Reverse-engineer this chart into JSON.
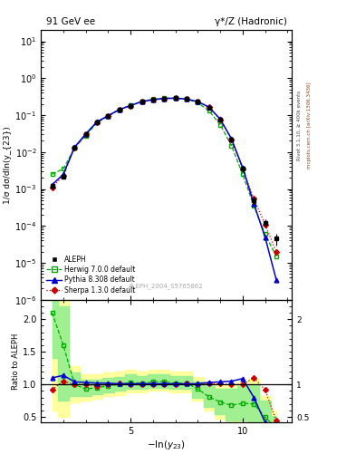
{
  "title_left": "91 GeV ee",
  "title_right": "γ*/Z (Hadronic)",
  "ylabel_main": "1/σ dσ/dln(y_{23})",
  "ylabel_ratio": "Ratio to ALEPH",
  "watermark": "ALEPH_2004_S5765862",
  "right_label1": "Rivet 3.1.10, ≥ 400k events",
  "right_label2": "mcplots.cern.ch [arXiv:1306.3436]",
  "aleph_x": [
    1.5,
    2.0,
    2.5,
    3.0,
    3.5,
    4.0,
    4.5,
    5.0,
    5.5,
    6.0,
    6.5,
    7.0,
    7.5,
    8.0,
    8.5,
    9.0,
    9.5,
    10.0,
    10.5,
    11.0,
    11.5
  ],
  "aleph_y": [
    0.0012,
    0.0022,
    0.013,
    0.03,
    0.065,
    0.095,
    0.14,
    0.18,
    0.23,
    0.26,
    0.28,
    0.285,
    0.27,
    0.23,
    0.16,
    0.075,
    0.022,
    0.0035,
    0.0005,
    0.00012,
    4.5e-05
  ],
  "aleph_yerr": [
    0.0002,
    0.0003,
    0.001,
    0.002,
    0.004,
    0.005,
    0.006,
    0.007,
    0.008,
    0.008,
    0.008,
    0.008,
    0.008,
    0.007,
    0.006,
    0.004,
    0.002,
    0.0005,
    0.0001,
    3e-05,
    1.5e-05
  ],
  "herwig_x": [
    1.5,
    2.0,
    2.5,
    3.0,
    3.5,
    4.0,
    4.5,
    5.0,
    5.5,
    6.0,
    6.5,
    7.0,
    7.5,
    8.0,
    8.5,
    9.0,
    9.5,
    10.0,
    10.5,
    11.0,
    11.5
  ],
  "herwig_y": [
    0.0025,
    0.0035,
    0.013,
    0.028,
    0.062,
    0.093,
    0.14,
    0.185,
    0.235,
    0.27,
    0.29,
    0.29,
    0.275,
    0.215,
    0.13,
    0.055,
    0.015,
    0.0025,
    0.00035,
    6e-05,
    1.5e-05
  ],
  "pythia_x": [
    1.5,
    2.0,
    2.5,
    3.0,
    3.5,
    4.0,
    4.5,
    5.0,
    5.5,
    6.0,
    6.5,
    7.0,
    7.5,
    8.0,
    8.5,
    9.0,
    9.5,
    10.0,
    10.5,
    11.0,
    11.5
  ],
  "pythia_y": [
    0.0013,
    0.0025,
    0.0135,
    0.031,
    0.066,
    0.097,
    0.142,
    0.182,
    0.232,
    0.262,
    0.282,
    0.287,
    0.273,
    0.232,
    0.165,
    0.078,
    0.023,
    0.0038,
    0.0004,
    5e-05,
    3.5e-06
  ],
  "sherpa_x": [
    1.5,
    2.0,
    2.5,
    3.0,
    3.5,
    4.0,
    4.5,
    5.0,
    5.5,
    6.0,
    6.5,
    7.0,
    7.5,
    8.0,
    8.5,
    9.0,
    9.5,
    10.0,
    10.5,
    11.0,
    11.5
  ],
  "sherpa_y": [
    0.0011,
    0.0023,
    0.013,
    0.03,
    0.064,
    0.095,
    0.141,
    0.181,
    0.23,
    0.261,
    0.281,
    0.286,
    0.272,
    0.231,
    0.162,
    0.076,
    0.022,
    0.0035,
    0.00055,
    0.00011,
    2e-05
  ],
  "herwig_ratio": [
    2.1,
    1.6,
    1.0,
    0.93,
    0.95,
    0.98,
    1.0,
    1.03,
    1.02,
    1.04,
    1.04,
    1.02,
    1.02,
    0.93,
    0.81,
    0.73,
    0.68,
    0.71,
    0.7,
    0.5,
    0.33
  ],
  "herwig_ratio_lo": [
    1.4,
    0.75,
    0.82,
    0.82,
    0.85,
    0.88,
    0.9,
    0.93,
    0.93,
    0.95,
    0.95,
    0.93,
    0.93,
    0.8,
    0.65,
    0.55,
    0.45,
    0.45,
    0.42,
    0.28,
    0.18
  ],
  "herwig_ratio_hi": [
    2.5,
    2.2,
    1.18,
    1.07,
    1.07,
    1.1,
    1.12,
    1.15,
    1.13,
    1.15,
    1.15,
    1.13,
    1.13,
    1.05,
    0.98,
    0.93,
    0.93,
    0.98,
    1.0,
    0.75,
    0.52
  ],
  "yellow_ratio_lo": [
    0.6,
    0.5,
    0.72,
    0.75,
    0.78,
    0.82,
    0.84,
    0.88,
    0.88,
    0.9,
    0.9,
    0.88,
    0.88,
    0.75,
    0.6,
    0.48,
    0.38,
    0.38,
    0.35,
    0.22,
    0.12
  ],
  "yellow_ratio_hi": [
    2.8,
    2.6,
    1.28,
    1.15,
    1.15,
    1.18,
    1.2,
    1.22,
    1.2,
    1.22,
    1.22,
    1.2,
    1.2,
    1.12,
    1.05,
    1.0,
    1.0,
    1.05,
    1.08,
    0.82,
    0.6
  ],
  "pythia_ratio": [
    1.1,
    1.14,
    1.04,
    1.03,
    1.02,
    1.02,
    1.01,
    1.01,
    1.01,
    1.01,
    1.01,
    1.01,
    1.01,
    1.01,
    1.03,
    1.04,
    1.05,
    1.09,
    0.8,
    0.42,
    0.08
  ],
  "sherpa_ratio": [
    0.92,
    1.05,
    1.0,
    1.0,
    0.98,
    1.0,
    1.01,
    1.0,
    1.0,
    1.0,
    1.0,
    1.0,
    1.01,
    1.0,
    1.01,
    1.01,
    1.0,
    1.0,
    1.1,
    0.92,
    0.44
  ],
  "colors": {
    "aleph": "#000000",
    "herwig": "#00aa00",
    "pythia": "#0000cc",
    "sherpa": "#cc0000"
  },
  "ylim_main": [
    1e-06,
    20
  ],
  "ylim_ratio": [
    0.42,
    2.3
  ],
  "xlim": [
    1.0,
    12.2
  ],
  "band_color_green": "#90EE90",
  "band_color_yellow": "#FFFF88"
}
